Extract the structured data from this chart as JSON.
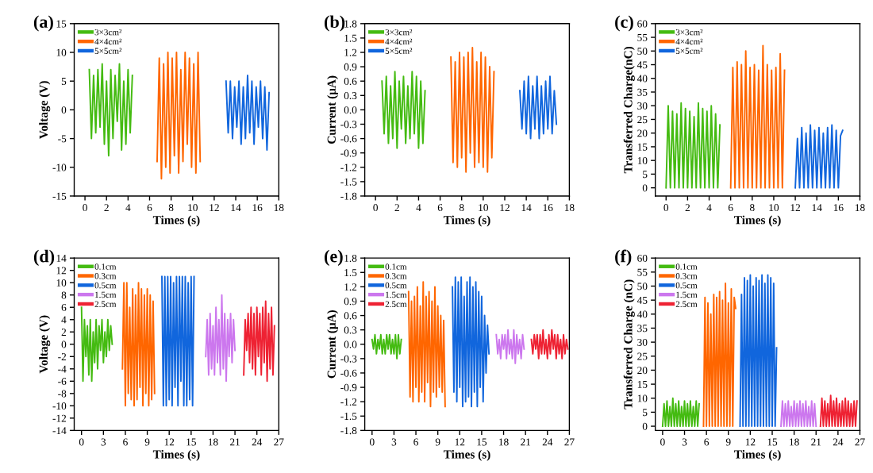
{
  "chart_data": [
    {
      "type": "line",
      "title": "(a)",
      "xlabel": "Times (s)",
      "ylabel": "Voltage (V)",
      "xlim": [
        -1,
        18
      ],
      "xticks": [
        0,
        2,
        4,
        6,
        8,
        10,
        12,
        14,
        16,
        18
      ],
      "ylim": [
        -15,
        15
      ],
      "yticks": [
        -15,
        -10,
        -5,
        0,
        5,
        10,
        15
      ],
      "grid": false,
      "legend": "top left",
      "marker": "none",
      "line_style": "solid",
      "series": [
        {
          "name": "3×3cm²",
          "color": "#44bb11",
          "x": [
            0.4,
            0.6,
            0.8,
            1.0,
            1.2,
            1.4,
            1.6,
            1.8,
            2.0,
            2.2,
            2.4,
            2.6,
            2.8,
            3.0,
            3.2,
            3.4,
            3.6,
            3.8,
            4.0,
            4.2,
            4.4
          ],
          "values": [
            7,
            -5,
            6,
            -4,
            7,
            -3,
            8,
            -6,
            5,
            -8,
            7,
            -5,
            6,
            -2,
            8,
            -7,
            5,
            -6,
            7,
            -4,
            6
          ]
        },
        {
          "name": "4×4cm²",
          "color": "#ff6600",
          "x": [
            6.7,
            6.9,
            7.1,
            7.3,
            7.5,
            7.7,
            7.9,
            8.1,
            8.3,
            8.5,
            8.7,
            8.9,
            9.1,
            9.3,
            9.5,
            9.7,
            9.9,
            10.1,
            10.3,
            10.5,
            10.7
          ],
          "values": [
            -9,
            9,
            -12,
            8,
            -10,
            10,
            -11,
            9,
            -8,
            10,
            -11,
            7,
            -9,
            10,
            -6,
            9,
            -10,
            8,
            -11,
            10,
            -9
          ]
        },
        {
          "name": "5×5cm²",
          "color": "#1166dd",
          "x": [
            13.1,
            13.3,
            13.5,
            13.7,
            13.9,
            14.1,
            14.3,
            14.5,
            14.7,
            14.9,
            15.1,
            15.3,
            15.5,
            15.7,
            15.9,
            16.1,
            16.3,
            16.5,
            16.7,
            16.9,
            17.1
          ],
          "values": [
            5,
            -4,
            5,
            -5,
            4,
            -3,
            5,
            -6,
            4,
            -5,
            6,
            -4,
            5,
            -6,
            4,
            -3,
            5,
            -5,
            4,
            -7,
            3
          ]
        }
      ]
    },
    {
      "type": "line",
      "title": "(b)",
      "xlabel": "Times (s)",
      "ylabel": "Current (μA)",
      "xlim": [
        -1,
        18
      ],
      "xticks": [
        0,
        2,
        4,
        6,
        8,
        10,
        12,
        14,
        16,
        18
      ],
      "ylim": [
        -1.8,
        1.8
      ],
      "yticks": [
        -1.8,
        -1.5,
        -1.2,
        -0.9,
        -0.6,
        -0.3,
        {
          "value": 0,
          "label": "0.0"
        },
        0.3,
        0.6,
        0.9,
        1.2,
        1.5,
        1.8
      ],
      "grid": false,
      "legend": "top left",
      "marker": "none",
      "line_style": "solid",
      "series": [
        {
          "name": "3×3cm²",
          "color": "#44bb11",
          "x": [
            0.6,
            0.8,
            1.0,
            1.2,
            1.4,
            1.6,
            1.8,
            2.0,
            2.2,
            2.4,
            2.6,
            2.8,
            3.0,
            3.2,
            3.4,
            3.6,
            3.8,
            4.0,
            4.2,
            4.4,
            4.6
          ],
          "values": [
            0.6,
            -0.5,
            0.7,
            -0.7,
            0.5,
            -0.6,
            0.8,
            -0.8,
            0.6,
            -0.4,
            0.7,
            -0.7,
            0.5,
            -0.6,
            0.8,
            -0.5,
            0.7,
            -0.8,
            0.6,
            -0.7,
            0.4
          ]
        },
        {
          "name": "4×4cm²",
          "color": "#ff6600",
          "x": [
            7.0,
            7.2,
            7.4,
            7.6,
            7.8,
            8.0,
            8.2,
            8.4,
            8.6,
            8.8,
            9.0,
            9.2,
            9.4,
            9.6,
            9.8,
            10.0,
            10.2,
            10.4,
            10.6,
            10.8,
            11.0
          ],
          "values": [
            1.1,
            -1.1,
            1.0,
            -1.2,
            1.2,
            -1.0,
            1.1,
            -1.3,
            1.2,
            -0.9,
            1.3,
            -1.2,
            1.0,
            -1.1,
            1.2,
            -1.2,
            1.1,
            -1.3,
            0.9,
            -1.0,
            0.8
          ]
        },
        {
          "name": "5×5cm²",
          "color": "#1166dd",
          "x": [
            13.4,
            13.6,
            13.8,
            14.0,
            14.2,
            14.4,
            14.6,
            14.8,
            15.0,
            15.2,
            15.4,
            15.6,
            15.8,
            16.0,
            16.2,
            16.4,
            16.6,
            16.8
          ],
          "values": [
            0.4,
            -0.4,
            0.6,
            -0.5,
            0.7,
            -0.6,
            0.5,
            -0.4,
            0.7,
            -0.6,
            0.5,
            -0.5,
            0.6,
            -0.4,
            0.7,
            -0.5,
            0.4,
            -0.3
          ]
        }
      ]
    },
    {
      "type": "line",
      "title": "(c)",
      "xlabel": "Times (s)",
      "ylabel": "Transferred Charge(nC)",
      "xlim": [
        -1,
        18
      ],
      "xticks": [
        0,
        2,
        4,
        6,
        8,
        10,
        12,
        14,
        16,
        18
      ],
      "ylim": [
        -3,
        60
      ],
      "yticks": [
        0,
        5,
        10,
        15,
        20,
        25,
        30,
        35,
        40,
        45,
        50,
        55,
        60
      ],
      "grid": false,
      "legend": "top left",
      "marker": "none",
      "line_style": "solid",
      "series": [
        {
          "name": "3×3cm²",
          "color": "#44bb11",
          "x": [
            0,
            0.2,
            0.4,
            0.6,
            0.8,
            1.0,
            1.2,
            1.4,
            1.6,
            1.8,
            2.0,
            2.2,
            2.4,
            2.6,
            2.8,
            3.0,
            3.2,
            3.4,
            3.6,
            3.8,
            4.0,
            4.2,
            4.4,
            4.6,
            4.8,
            5.0
          ],
          "values": [
            0,
            30,
            0,
            28,
            0,
            27,
            0,
            31,
            0,
            29,
            0,
            28,
            0,
            26,
            0,
            31,
            0,
            29,
            0,
            28,
            0,
            30,
            0,
            27,
            0,
            23
          ]
        },
        {
          "name": "4×4cm²",
          "color": "#ff6600",
          "x": [
            6.0,
            6.2,
            6.4,
            6.6,
            6.8,
            7.0,
            7.2,
            7.4,
            7.6,
            7.8,
            8.0,
            8.2,
            8.4,
            8.6,
            8.8,
            9.0,
            9.2,
            9.4,
            9.6,
            9.8,
            10.0,
            10.2,
            10.4,
            10.6,
            10.8,
            11.0
          ],
          "values": [
            0,
            44,
            0,
            46,
            0,
            45,
            0,
            50,
            0,
            44,
            0,
            45,
            0,
            43,
            0,
            52,
            0,
            45,
            0,
            43,
            0,
            44,
            0,
            49,
            0,
            43
          ]
        },
        {
          "name": "5×5cm²",
          "color": "#1166dd",
          "x": [
            12.0,
            12.2,
            12.4,
            12.6,
            12.8,
            13.0,
            13.2,
            13.4,
            13.6,
            13.8,
            14.0,
            14.2,
            14.4,
            14.6,
            14.8,
            15.0,
            15.2,
            15.4,
            15.6,
            15.8,
            16.0,
            16.2,
            16.4
          ],
          "values": [
            0,
            18,
            0,
            22,
            0,
            20,
            0,
            23,
            0,
            21,
            0,
            22,
            0,
            20,
            0,
            22,
            0,
            23,
            0,
            21,
            0,
            19,
            21
          ]
        }
      ]
    },
    {
      "type": "line",
      "title": "(d)",
      "xlabel": "Times (s)",
      "ylabel": "Voltage (V)",
      "xlim": [
        -1,
        27
      ],
      "xticks": [
        0,
        3,
        6,
        9,
        12,
        15,
        18,
        21,
        24,
        27
      ],
      "ylim": [
        -14,
        14
      ],
      "yticks": [
        -14,
        -12,
        -10,
        -8,
        -6,
        -4,
        -2,
        0,
        2,
        4,
        6,
        8,
        10,
        12,
        14
      ],
      "grid": false,
      "legend": "top left",
      "marker": "none",
      "line_style": "solid",
      "series": [
        {
          "name": "0.1cm",
          "color": "#44bb11",
          "x": [
            0,
            0.2,
            0.4,
            0.6,
            0.8,
            1.0,
            1.2,
            1.4,
            1.6,
            1.8,
            2.0,
            2.2,
            2.4,
            2.6,
            2.8,
            3.0,
            3.2,
            3.4,
            3.6,
            3.8,
            4.0,
            4.2
          ],
          "values": [
            6,
            -6,
            4,
            -2,
            3,
            -5,
            4,
            -6,
            2,
            -3,
            4,
            -4,
            3,
            -1,
            4,
            -3,
            2,
            -2,
            4,
            -1,
            3,
            0
          ]
        },
        {
          "name": "0.3cm",
          "color": "#ff6600",
          "x": [
            5.6,
            5.8,
            6.0,
            6.2,
            6.4,
            6.6,
            6.8,
            7.0,
            7.2,
            7.4,
            7.6,
            7.8,
            8.0,
            8.2,
            8.4,
            8.6,
            8.8,
            9.0,
            9.2,
            9.4,
            9.6,
            9.8,
            10.0
          ],
          "values": [
            -4,
            10,
            -10,
            10,
            -8,
            6,
            -9,
            9,
            -10,
            8,
            -9,
            10,
            -7,
            9,
            -10,
            8,
            -8,
            9,
            -10,
            8,
            -9,
            7,
            -8
          ]
        },
        {
          "name": "0.5cm",
          "color": "#1166dd",
          "x": [
            11.0,
            11.2,
            11.4,
            11.6,
            11.8,
            12.0,
            12.2,
            12.4,
            12.6,
            12.8,
            13.0,
            13.2,
            13.4,
            13.6,
            13.8,
            14.0,
            14.2,
            14.4,
            14.6,
            14.8,
            15.0,
            15.2,
            15.4
          ],
          "values": [
            11,
            -10,
            11,
            -10,
            11,
            -9,
            11,
            -10,
            10,
            -7,
            11,
            -10,
            11,
            -6,
            11,
            -10,
            11,
            -10,
            10,
            -9,
            11,
            -10,
            11
          ]
        },
        {
          "name": "1.5cm",
          "color": "#cc77ee",
          "x": [
            17.0,
            17.2,
            17.4,
            17.6,
            17.8,
            18.0,
            18.2,
            18.4,
            18.6,
            18.8,
            19.0,
            19.2,
            19.4,
            19.6,
            19.8,
            20.0,
            20.2,
            20.4,
            20.6,
            20.8,
            21.0
          ],
          "values": [
            -2,
            4,
            -5,
            5,
            -4,
            3,
            -5,
            6,
            -3,
            4,
            -5,
            8,
            -4,
            5,
            -6,
            4,
            -2,
            5,
            -3,
            4,
            -1
          ]
        },
        {
          "name": "2.5cm",
          "color": "#ee2233",
          "x": [
            22.2,
            22.4,
            22.6,
            22.8,
            23.0,
            23.2,
            23.4,
            23.6,
            23.8,
            24.0,
            24.2,
            24.4,
            24.6,
            24.8,
            25.0,
            25.2,
            25.4,
            25.6,
            25.8,
            26.0,
            26.2,
            26.4
          ],
          "values": [
            -5,
            4,
            -1,
            5,
            -3,
            6,
            -4,
            5,
            -5,
            6,
            -2,
            5,
            -5,
            6,
            -3,
            7,
            -6,
            5,
            -4,
            6,
            -5,
            3
          ]
        }
      ]
    },
    {
      "type": "line",
      "title": "(e)",
      "xlabel": "Times (s)",
      "ylabel": "Current (μA)",
      "xlim": [
        -1,
        27
      ],
      "xticks": [
        0,
        3,
        6,
        9,
        12,
        15,
        18,
        21,
        24,
        27
      ],
      "ylim": [
        -1.8,
        1.8
      ],
      "yticks": [
        -1.8,
        -1.5,
        -1.2,
        -0.9,
        -0.6,
        -0.3,
        {
          "value": 0,
          "label": "0.0"
        },
        0.3,
        0.6,
        0.9,
        1.2,
        1.5,
        1.8
      ],
      "grid": false,
      "legend": "top left",
      "marker": "none",
      "line_style": "solid",
      "series": [
        {
          "name": "0.1cm",
          "color": "#44bb11",
          "x": [
            0,
            0.2,
            0.4,
            0.6,
            0.8,
            1.0,
            1.2,
            1.4,
            1.6,
            1.8,
            2.0,
            2.2,
            2.4,
            2.6,
            2.8,
            3.0,
            3.2,
            3.4,
            3.6,
            3.8,
            4.0
          ],
          "values": [
            0.1,
            -0.1,
            0.2,
            -0.2,
            0.1,
            -0.1,
            0.2,
            -0.2,
            0.1,
            -0.2,
            0.2,
            -0.1,
            0.2,
            -0.2,
            0.1,
            -0.2,
            0.2,
            -0.3,
            0.2,
            -0.2,
            0.1
          ]
        },
        {
          "name": "0.3cm",
          "color": "#ff6600",
          "x": [
            5.0,
            5.2,
            5.4,
            5.6,
            5.8,
            6.0,
            6.2,
            6.4,
            6.6,
            6.8,
            7.0,
            7.2,
            7.4,
            7.6,
            7.8,
            8.0,
            8.2,
            8.4,
            8.6,
            8.8,
            9.0,
            9.2,
            9.4,
            9.6,
            9.8,
            10.0
          ],
          "values": [
            1.1,
            -1.1,
            0.9,
            -1.2,
            1.0,
            -0.9,
            1.2,
            -1.2,
            0.8,
            -1.0,
            1.3,
            -1.2,
            1.0,
            -0.8,
            1.1,
            -1.3,
            0.9,
            -1.0,
            1.2,
            -1.1,
            0.8,
            -0.9,
            0.6,
            -1.0,
            0.5,
            -1.3
          ]
        },
        {
          "name": "0.5cm",
          "color": "#1166dd",
          "x": [
            11.0,
            11.2,
            11.4,
            11.6,
            11.8,
            12.0,
            12.2,
            12.4,
            12.6,
            12.8,
            13.0,
            13.2,
            13.4,
            13.6,
            13.8,
            14.0,
            14.2,
            14.4,
            14.6,
            14.8,
            15.0,
            15.2,
            15.4,
            15.6,
            15.8,
            16.0
          ],
          "values": [
            1.2,
            -1.0,
            1.4,
            -1.2,
            1.3,
            -0.9,
            1.4,
            -1.3,
            1.0,
            -1.2,
            1.3,
            -1.1,
            1.4,
            -1.3,
            1.2,
            -1.0,
            1.3,
            -1.3,
            1.1,
            -0.9,
            1.0,
            -1.2,
            0.6,
            -0.6,
            0.4,
            -0.2
          ]
        },
        {
          "name": "1.5cm",
          "color": "#cc77ee",
          "x": [
            17.0,
            17.2,
            17.4,
            17.6,
            17.8,
            18.0,
            18.2,
            18.4,
            18.6,
            18.8,
            19.0,
            19.2,
            19.4,
            19.6,
            19.8,
            20.0,
            20.2,
            20.4,
            20.6,
            20.8
          ],
          "values": [
            0.2,
            -0.2,
            0.1,
            -0.3,
            0.2,
            -0.1,
            0.2,
            -0.3,
            0.3,
            -0.2,
            0.1,
            -0.3,
            0.3,
            -0.4,
            0.2,
            -0.2,
            0.1,
            -0.3,
            0.2,
            -0.1
          ]
        },
        {
          "name": "2.5cm",
          "color": "#ee2233",
          "x": [
            21.8,
            22.0,
            22.2,
            22.4,
            22.6,
            22.8,
            23.0,
            23.2,
            23.4,
            23.6,
            23.8,
            24.0,
            24.2,
            24.4,
            24.6,
            24.8,
            25.0,
            25.2,
            25.4,
            25.6,
            25.8,
            26.0,
            26.2,
            26.4,
            26.6,
            26.8
          ],
          "values": [
            0.1,
            -0.2,
            0.2,
            -0.1,
            0.2,
            -0.3,
            0.2,
            -0.2,
            0.3,
            -0.2,
            0.1,
            -0.3,
            0.2,
            -0.2,
            0.3,
            -0.1,
            0.2,
            -0.3,
            0.2,
            -0.2,
            0.1,
            -0.3,
            0.2,
            -0.2,
            0.1,
            -0.1
          ]
        }
      ]
    },
    {
      "type": "line",
      "title": "(f)",
      "xlabel": "Times (s)",
      "ylabel": "Transferred Charge (nC)",
      "xlim": [
        -1,
        27
      ],
      "xticks": [
        0,
        3,
        6,
        9,
        12,
        15,
        18,
        21,
        24,
        27
      ],
      "ylim": [
        -1.5,
        60
      ],
      "yticks": [
        0,
        5,
        10,
        15,
        20,
        25,
        30,
        35,
        40,
        45,
        50,
        55,
        60
      ],
      "grid": false,
      "legend": "top left",
      "marker": "none",
      "line_style": "solid",
      "series": [
        {
          "name": "0.1cm",
          "color": "#44bb11",
          "x": [
            0,
            0.2,
            0.4,
            0.6,
            0.8,
            1.0,
            1.2,
            1.4,
            1.6,
            1.8,
            2.0,
            2.2,
            2.4,
            2.6,
            2.8,
            3.0,
            3.2,
            3.4,
            3.6,
            3.8,
            4.0,
            4.2,
            4.4,
            4.6,
            4.8,
            5.0
          ],
          "values": [
            0,
            8,
            0,
            9,
            0,
            7,
            0,
            10,
            0,
            8,
            0,
            9,
            0,
            7,
            0,
            9,
            0,
            8,
            0,
            9,
            0,
            7,
            0,
            9,
            0,
            8
          ]
        },
        {
          "name": "0.3cm",
          "color": "#ff6600",
          "x": [
            5.6,
            5.8,
            6.0,
            6.2,
            6.4,
            6.6,
            6.8,
            7.0,
            7.2,
            7.4,
            7.6,
            7.8,
            8.0,
            8.2,
            8.4,
            8.6,
            8.8,
            9.0,
            9.2,
            9.4,
            9.6,
            9.8,
            10.0
          ],
          "values": [
            0,
            46,
            0,
            44,
            0,
            40,
            0,
            47,
            0,
            46,
            0,
            48,
            0,
            45,
            0,
            51,
            0,
            44,
            0,
            49,
            0,
            46,
            42
          ]
        },
        {
          "name": "0.5cm",
          "color": "#1166dd",
          "x": [
            10.6,
            10.8,
            11.0,
            11.2,
            11.4,
            11.6,
            11.8,
            12.0,
            12.2,
            12.4,
            12.6,
            12.8,
            13.0,
            13.2,
            13.4,
            13.6,
            13.8,
            14.0,
            14.2,
            14.4,
            14.6,
            14.8,
            15.0,
            15.2,
            15.4,
            15.6
          ],
          "values": [
            0,
            47,
            0,
            53,
            0,
            52,
            0,
            54,
            0,
            50,
            0,
            53,
            0,
            52,
            0,
            54,
            0,
            51,
            0,
            54,
            0,
            53,
            0,
            51,
            0,
            28
          ]
        },
        {
          "name": "1.5cm",
          "color": "#cc77ee",
          "x": [
            16.2,
            16.4,
            16.6,
            16.8,
            17.0,
            17.2,
            17.4,
            17.6,
            17.8,
            18.0,
            18.2,
            18.4,
            18.6,
            18.8,
            19.0,
            19.2,
            19.4,
            19.6,
            19.8,
            20.0,
            20.2,
            20.4,
            20.6,
            20.8,
            21.0
          ],
          "values": [
            0,
            9,
            0,
            8,
            0,
            9,
            0,
            7,
            0,
            9,
            0,
            8,
            0,
            9,
            0,
            8,
            0,
            9,
            0,
            7,
            0,
            9,
            0,
            8,
            0
          ]
        },
        {
          "name": "2.5cm",
          "color": "#ee2233",
          "x": [
            21.6,
            21.8,
            22.0,
            22.2,
            22.4,
            22.6,
            22.8,
            23.0,
            23.2,
            23.4,
            23.6,
            23.8,
            24.0,
            24.2,
            24.4,
            24.6,
            24.8,
            25.0,
            25.2,
            25.4,
            25.6,
            25.8,
            26.0,
            26.2,
            26.4,
            26.6
          ],
          "values": [
            0,
            10,
            0,
            9,
            0,
            8,
            0,
            11,
            0,
            9,
            0,
            10,
            0,
            8,
            0,
            9,
            0,
            10,
            0,
            9,
            0,
            8,
            0,
            9,
            0,
            9
          ]
        }
      ]
    }
  ]
}
